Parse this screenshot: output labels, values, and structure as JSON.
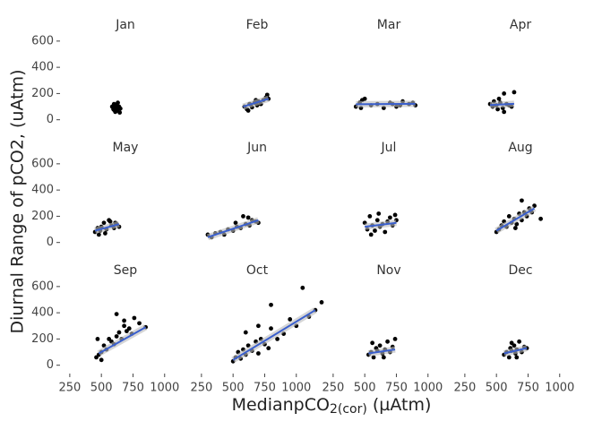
{
  "axes": {
    "xlim": [
      180,
      1200
    ],
    "ylim": [
      -50,
      640
    ],
    "xticks": [
      250,
      500,
      750,
      1000
    ],
    "yticks": [
      0,
      200,
      400,
      600
    ],
    "xlabel_parts": [
      "MedianpCO",
      "2(cor)",
      " (µAtm)"
    ],
    "ylabel": "Diurnal Range of pCO2, (uAtm)"
  },
  "chart_data": [
    {
      "type": "scatter",
      "title": "Jan",
      "color": "#000000",
      "x": [
        585,
        595,
        600,
        605,
        610,
        615,
        620,
        625,
        630,
        640,
        645,
        650,
        600,
        620
      ],
      "y": [
        100,
        80,
        120,
        95,
        60,
        110,
        90,
        70,
        130,
        100,
        55,
        85,
        75,
        115
      ]
    },
    {
      "type": "scatter",
      "title": "Feb",
      "color": "#000000",
      "x": [
        590,
        610,
        630,
        650,
        670,
        690,
        700,
        720,
        740,
        760,
        770,
        780,
        620,
        680,
        640
      ],
      "y": [
        100,
        80,
        120,
        95,
        130,
        110,
        140,
        120,
        150,
        170,
        190,
        160,
        70,
        150,
        115
      ],
      "fit_color": "#3a5fcd",
      "fit_x": [
        580,
        780
      ],
      "fit_y": [
        100,
        160
      ]
    },
    {
      "type": "scatter",
      "title": "Mar",
      "color": "#000000",
      "x": [
        430,
        460,
        480,
        500,
        550,
        600,
        650,
        700,
        720,
        750,
        780,
        800,
        850,
        880,
        900,
        470
      ],
      "y": [
        100,
        130,
        150,
        160,
        110,
        120,
        90,
        130,
        120,
        100,
        110,
        140,
        120,
        130,
        110,
        90
      ],
      "fit_color": "#3a5fcd",
      "fit_x": [
        430,
        900
      ],
      "fit_y": [
        118,
        122
      ]
    },
    {
      "type": "scatter",
      "title": "Apr",
      "color": "#000000",
      "x": [
        450,
        470,
        480,
        500,
        520,
        550,
        560,
        580,
        600,
        620,
        640,
        560,
        510,
        530
      ],
      "y": [
        120,
        100,
        140,
        110,
        160,
        90,
        60,
        120,
        110,
        100,
        210,
        200,
        80,
        130
      ],
      "fit_color": "#3a5fcd",
      "fit_x": [
        450,
        640
      ],
      "fit_y": [
        112,
        122
      ]
    },
    {
      "type": "scatter",
      "title": "May",
      "color": "#000000",
      "x": [
        450,
        470,
        490,
        500,
        520,
        540,
        560,
        580,
        600,
        620,
        640,
        480,
        530,
        570,
        610
      ],
      "y": [
        80,
        110,
        90,
        120,
        150,
        100,
        170,
        130,
        110,
        140,
        120,
        60,
        70,
        160,
        150
      ],
      "fit_color": "#3a5fcd",
      "fit_x": [
        450,
        640
      ],
      "fit_y": [
        90,
        140
      ]
    },
    {
      "type": "scatter",
      "title": "Jun",
      "color": "#000000",
      "x": [
        300,
        330,
        360,
        400,
        430,
        460,
        500,
        530,
        560,
        600,
        630,
        650,
        680,
        700,
        520,
        580,
        620
      ],
      "y": [
        60,
        40,
        70,
        80,
        60,
        100,
        90,
        120,
        110,
        140,
        130,
        170,
        160,
        150,
        150,
        200,
        190
      ],
      "fit_color": "#3a5fcd",
      "fit_x": [
        300,
        700
      ],
      "fit_y": [
        40,
        170
      ]
    },
    {
      "type": "scatter",
      "title": "Jul",
      "color": "#000000",
      "x": [
        500,
        520,
        540,
        560,
        580,
        600,
        620,
        640,
        660,
        680,
        700,
        720,
        740,
        750,
        550,
        610
      ],
      "y": [
        150,
        100,
        200,
        130,
        90,
        170,
        120,
        140,
        80,
        160,
        190,
        130,
        210,
        170,
        60,
        220
      ],
      "fit_color": "#3a5fcd",
      "fit_x": [
        500,
        750
      ],
      "fit_y": [
        120,
        150
      ]
    },
    {
      "type": "scatter",
      "title": "Aug",
      "color": "#000000",
      "x": [
        500,
        520,
        540,
        560,
        580,
        600,
        620,
        640,
        660,
        680,
        700,
        720,
        740,
        760,
        780,
        800,
        850,
        650,
        700
      ],
      "y": [
        80,
        100,
        130,
        160,
        120,
        200,
        150,
        180,
        140,
        220,
        170,
        230,
        200,
        260,
        230,
        280,
        180,
        110,
        320
      ],
      "fit_color": "#3a5fcd",
      "fit_x": [
        500,
        800
      ],
      "fit_y": [
        90,
        260
      ]
    },
    {
      "type": "scatter",
      "title": "Sep",
      "color": "#000000",
      "x": [
        460,
        470,
        480,
        500,
        520,
        540,
        560,
        580,
        600,
        620,
        640,
        660,
        680,
        700,
        720,
        740,
        760,
        800,
        850,
        500,
        620,
        680
      ],
      "y": [
        60,
        200,
        80,
        100,
        150,
        120,
        200,
        180,
        160,
        220,
        250,
        200,
        300,
        260,
        280,
        240,
        360,
        320,
        290,
        40,
        390,
        340
      ],
      "fit_color": "#3a5fcd",
      "fit_x": [
        480,
        850
      ],
      "fit_y": [
        90,
        290
      ]
    },
    {
      "type": "scatter",
      "title": "Oct",
      "color": "#000000",
      "x": [
        500,
        520,
        540,
        560,
        580,
        600,
        620,
        650,
        680,
        700,
        720,
        750,
        780,
        800,
        850,
        900,
        950,
        1000,
        1050,
        1100,
        1150,
        1200,
        600,
        700,
        800
      ],
      "y": [
        30,
        60,
        100,
        50,
        120,
        80,
        150,
        110,
        180,
        90,
        200,
        160,
        130,
        280,
        200,
        240,
        350,
        300,
        590,
        370,
        420,
        480,
        250,
        300,
        460
      ],
      "fit_color": "#3a5fcd",
      "fit_x": [
        500,
        1150
      ],
      "fit_y": [
        40,
        420
      ]
    },
    {
      "type": "scatter",
      "title": "Nov",
      "color": "#000000",
      "x": [
        530,
        550,
        570,
        590,
        600,
        620,
        640,
        660,
        680,
        700,
        720,
        740,
        560,
        650
      ],
      "y": [
        80,
        100,
        60,
        130,
        110,
        150,
        90,
        120,
        180,
        100,
        140,
        200,
        170,
        60
      ],
      "fit_color": "#3a5fcd",
      "fit_x": [
        530,
        740
      ],
      "fit_y": [
        90,
        120
      ]
    },
    {
      "type": "scatter",
      "title": "Dec",
      "color": "#000000",
      "x": [
        560,
        580,
        600,
        610,
        620,
        640,
        650,
        660,
        680,
        700,
        720,
        740,
        620,
        660
      ],
      "y": [
        80,
        100,
        60,
        130,
        110,
        150,
        90,
        120,
        180,
        100,
        140,
        130,
        170,
        60
      ],
      "fit_color": "#3a5fcd",
      "fit_x": [
        560,
        740
      ],
      "fit_y": [
        90,
        130
      ]
    }
  ]
}
